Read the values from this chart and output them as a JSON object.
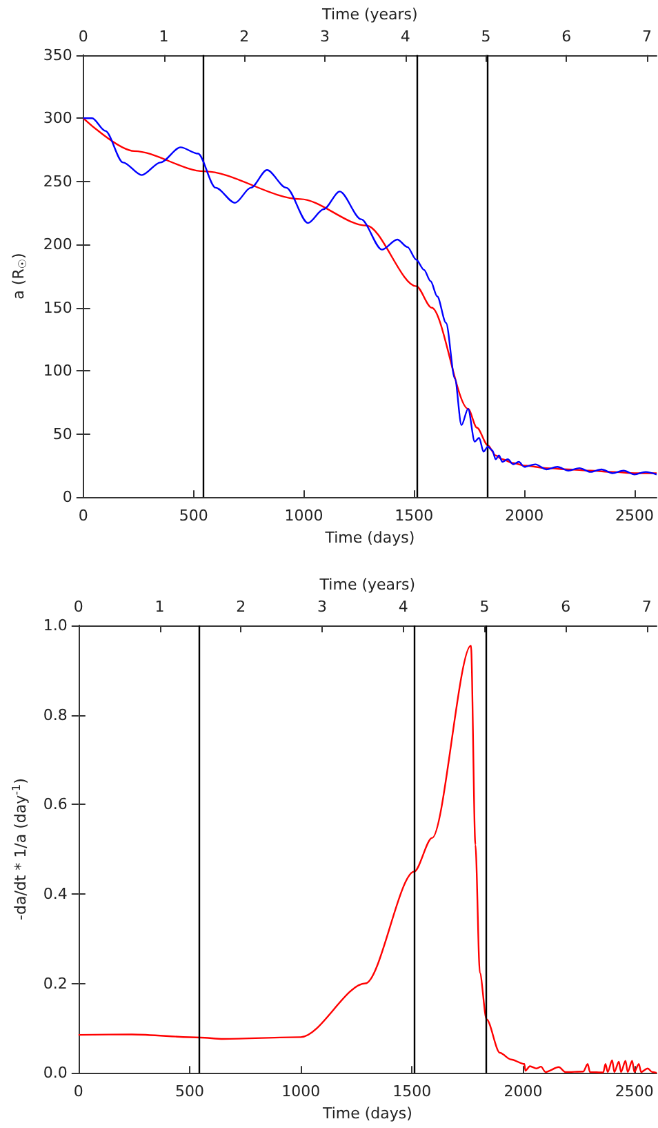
{
  "chart_data": [
    {
      "type": "line",
      "xlabel": "Time (days)",
      "x2label": "Time (years)",
      "ylabel": "a (R$_{☉}$)",
      "xlim": [
        0,
        2600
      ],
      "xticks": [
        0,
        500,
        1000,
        1500,
        2000,
        2500
      ],
      "x2lim": [
        0,
        7.12
      ],
      "x2ticks": [
        0,
        1,
        2,
        3,
        4,
        5,
        6,
        7
      ],
      "ylim": [
        0,
        350
      ],
      "yticks": [
        0,
        50,
        100,
        150,
        200,
        250,
        300,
        350
      ],
      "grid": false,
      "series": [
        {
          "color": "#0000ff",
          "x": [
            0,
            40,
            100,
            180,
            265,
            350,
            441,
            520,
            600,
            688,
            760,
            833,
            920,
            1019,
            1090,
            1163,
            1260,
            1354,
            1424,
            1470,
            1510,
            1545,
            1575,
            1605,
            1645,
            1685,
            1715,
            1745,
            1775,
            1795,
            1815,
            1835,
            1855,
            1870,
            1885,
            1900,
            1925,
            1950,
            1975,
            2000,
            2050,
            2100,
            2150,
            2200,
            2250,
            2300,
            2350,
            2400,
            2450,
            2500,
            2550,
            2600
          ],
          "values": [
            300,
            300,
            290,
            265,
            255,
            265,
            277,
            272,
            245,
            233,
            245,
            259,
            245,
            217,
            228,
            242,
            220,
            196,
            204,
            198,
            188,
            180,
            171,
            159,
            138,
            94,
            57,
            70,
            44,
            47,
            36,
            40,
            37,
            30,
            33,
            28,
            30,
            26,
            28,
            24,
            26,
            22,
            24,
            21,
            23,
            20,
            22,
            19,
            21,
            18,
            20,
            18
          ]
        },
        {
          "color": "#ff0000",
          "x": [
            0,
            231,
            548,
            984,
            1284,
            1510,
            1580,
            1745,
            1785,
            1835,
            1870,
            1900,
            1950,
            2000,
            2100,
            2200,
            2300,
            2400,
            2500,
            2600
          ],
          "values": [
            300,
            274,
            258,
            236,
            215,
            167,
            150,
            70,
            55,
            41,
            33,
            30,
            27,
            25,
            23,
            22,
            21,
            20,
            19,
            19
          ]
        }
      ],
      "ref_lines": [
        {
          "axis": "x",
          "value": 544,
          "color": "#000000"
        },
        {
          "axis": "x",
          "value": 1510,
          "color": "#000000"
        },
        {
          "axis": "x",
          "value": 1835,
          "color": "#000000"
        }
      ]
    },
    {
      "type": "line",
      "xlabel": "Time (days)",
      "x2label": "Time (years)",
      "ylabel": "-da/dt * 1/a (day$^{-1}$)",
      "xlim": [
        0,
        2600
      ],
      "xticks": [
        0,
        500,
        1000,
        1500,
        2000,
        2500
      ],
      "x2lim": [
        0,
        7.12
      ],
      "x2ticks": [
        0,
        1,
        2,
        3,
        4,
        5,
        6,
        7
      ],
      "ylim": [
        0,
        1.0
      ],
      "yticks": [
        {
          "value": 0,
          "label": "0.0"
        },
        0.2,
        0.4,
        0.6,
        0.8,
        {
          "value": 1,
          "label": "1.0"
        }
      ],
      "grid": false,
      "series": [
        {
          "color": "#ff0000",
          "x": [
            0,
            240,
            548,
            650,
            1000,
            1290,
            1510,
            1590,
            1765,
            1785,
            1805,
            1835,
            1895,
            1945,
            2005,
            2010,
            2030,
            2060,
            2080,
            2100,
            2160,
            2190,
            2270,
            2290,
            2300,
            2360,
            2370,
            2380,
            2400,
            2410,
            2430,
            2440,
            2460,
            2470,
            2490,
            2500,
            2520,
            2530,
            2560,
            2580,
            2600
          ],
          "values": [
            0.085,
            0.086,
            0.079,
            0.076,
            0.08,
            0.2,
            0.45,
            0.525,
            0.955,
            0.51,
            0.224,
            0.12,
            0.045,
            0.03,
            0.02,
            0.005,
            0.015,
            0.01,
            0.014,
            0.002,
            0.013,
            0.002,
            0.003,
            0.02,
            0.002,
            0.001,
            0.02,
            0.002,
            0.028,
            0.002,
            0.025,
            0.002,
            0.027,
            0.002,
            0.027,
            0.002,
            0.02,
            0.002,
            0.01,
            0.002,
            0
          ]
        }
      ],
      "ref_lines": [
        {
          "axis": "x",
          "value": 544,
          "color": "#000000"
        },
        {
          "axis": "x",
          "value": 1510,
          "color": "#000000"
        },
        {
          "axis": "x",
          "value": 1835,
          "color": "#000000"
        }
      ]
    }
  ]
}
